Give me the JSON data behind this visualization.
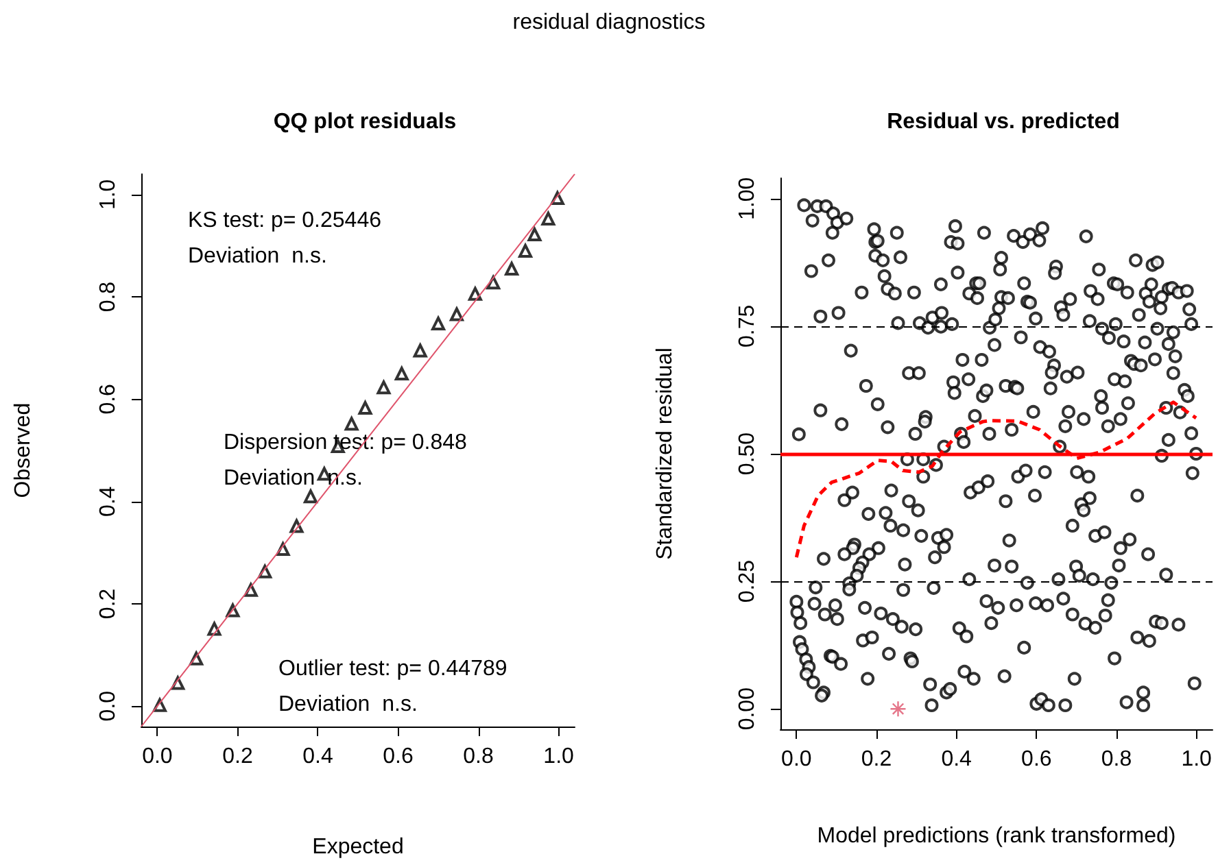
{
  "chart_data": [
    {
      "type": "other",
      "title": "residual diagnostics"
    },
    {
      "type": "scatter",
      "title": "QQ plot residuals",
      "xlabel": "Expected",
      "ylabel": "Observed",
      "xlim": [
        -0.04,
        1.04
      ],
      "ylim": [
        -0.04,
        1.04
      ],
      "xticks": [
        {
          "value": 0,
          "label": "0.0"
        },
        {
          "value": 0.2,
          "label": "0.2"
        },
        {
          "value": 0.4,
          "label": "0.4"
        },
        {
          "value": 0.6,
          "label": "0.6"
        },
        {
          "value": 0.8,
          "label": "0.8"
        },
        {
          "value": 1,
          "label": "1.0"
        }
      ],
      "yticks": [
        {
          "value": 0,
          "label": "0.0"
        },
        {
          "value": 0.2,
          "label": "0.2"
        },
        {
          "value": 0.4,
          "label": "0.4"
        },
        {
          "value": 0.6,
          "label": "0.6"
        },
        {
          "value": 0.8,
          "label": "0.8"
        },
        {
          "value": 1,
          "label": "1.0"
        }
      ],
      "annotations": [
        "KS test: p= 0.25446\nDeviation  n.s.",
        "Dispersion test: p= 0.848\nDeviation  n.s.",
        "Outlier test: p= 0.44789\nDeviation  n.s."
      ],
      "series": [
        {
          "type": "scatter",
          "color": "#000000",
          "marker": "triangle",
          "x": [
            0.006,
            0.051,
            0.097,
            0.142,
            0.188,
            0.233,
            0.268,
            0.313,
            0.347,
            0.382,
            0.416,
            0.45,
            0.484,
            0.518,
            0.564,
            0.609,
            0.655,
            0.7,
            0.746,
            0.792,
            0.837,
            0.883,
            0.917,
            0.94,
            0.974,
            0.997
          ],
          "values": [
            0.002,
            0.045,
            0.093,
            0.151,
            0.187,
            0.227,
            0.263,
            0.307,
            0.352,
            0.41,
            0.454,
            0.508,
            0.552,
            0.583,
            0.623,
            0.65,
            0.695,
            0.748,
            0.766,
            0.806,
            0.828,
            0.855,
            0.89,
            0.922,
            0.953,
            0.993
          ]
        },
        {
          "type": "line",
          "color": "#df536b",
          "marker": "none",
          "line_style": "solid",
          "x": [
            -0.04,
            1.04
          ],
          "values": [
            -0.04,
            1.04
          ]
        }
      ]
    },
    {
      "type": "scatter",
      "title": "Residual vs. predicted",
      "xlabel": "Model predictions (rank transformed)",
      "ylabel": "Standardized residual",
      "xlim": [
        -0.04,
        1.04
      ],
      "ylim": [
        -0.04,
        1.04
      ],
      "xticks": [
        {
          "value": 0,
          "label": "0.0"
        },
        {
          "value": 0.2,
          "label": "0.2"
        },
        {
          "value": 0.4,
          "label": "0.4"
        },
        {
          "value": 0.6,
          "label": "0.6"
        },
        {
          "value": 0.8,
          "label": "0.8"
        },
        {
          "value": 1,
          "label": "1.0"
        }
      ],
      "yticks": [
        {
          "value": 0,
          "label": "0.00"
        },
        {
          "value": 0.25,
          "label": "0.25"
        },
        {
          "value": 0.5,
          "label": "0.50"
        },
        {
          "value": 0.75,
          "label": "0.75"
        },
        {
          "value": 1,
          "label": "1.00"
        }
      ],
      "ref_lines": [
        {
          "axis": "y",
          "value": 0.5,
          "color": "#ff0000",
          "line_style": "solid"
        },
        {
          "axis": "y",
          "value": 0.25,
          "color": "#000000",
          "line_style": "dashed"
        },
        {
          "axis": "y",
          "value": 0.75,
          "color": "#000000",
          "line_style": "dashed"
        }
      ],
      "series": [
        {
          "type": "scatter",
          "color": "#000000",
          "marker": "circle",
          "x": [
            0.019,
            0.052,
            0.074,
            0.04,
            0.092,
            0.102,
            0.125,
            0.09,
            0.194,
            0.251,
            0.397,
            0.469,
            0.197,
            0.203,
            0.386,
            0.403,
            0.197,
            0.216,
            0.26,
            0.037,
            0.08,
            0.403,
            0.22,
            0.163,
            0.228,
            0.246,
            0.294,
            0.361,
            0.432,
            0.449,
            0.457,
            0.452,
            0.06,
            0.105,
            0.254,
            0.308,
            0.329,
            0.34,
            0.361,
            0.363,
            0.389,
            0.483,
            0.136,
            0.281,
            0.306,
            0.415,
            0.463,
            0.392,
            0.43,
            0.395,
            0.466,
            0.475,
            0.174,
            0.203,
            0.06,
            0.113,
            0.228,
            0.323,
            0.321,
            0.297,
            0.006,
            0.446,
            0.411,
            0.482,
            0.369,
            0.418,
            0.277,
            0.317,
            0.349,
            0.317,
            0.12,
            0.14,
            0.237,
            0.281,
            0.304,
            0.435,
            0.455,
            0.478,
            0.18,
            0.223,
            0.235,
            0.267,
            0.312,
            0.354,
            0.375,
            0.369,
            0.145,
            0.141,
            0.12,
            0.068,
            0.205,
            0.182,
            0.165,
            0.157,
            0.151,
            0.346,
            0.271,
            0.132,
            0.132,
            0.048,
            0.432,
            0.343,
            0.267,
            0.0,
            0.045,
            0.002,
            0.071,
            0.097,
            0.102,
            0.171,
            0.01,
            0.211,
            0.241,
            0.263,
            0.298,
            0.407,
            0.425,
            0.475,
            0.487,
            0.166,
            0.189,
            0.008,
            0.014,
            0.024,
            0.031,
            0.025,
            0.042,
            0.085,
            0.09,
            0.111,
            0.231,
            0.285,
            0.289,
            0.178,
            0.334,
            0.375,
            0.384,
            0.338,
            0.42,
            0.443,
            0.068,
            0.063,
            0.543,
            0.566,
            0.584,
            0.607,
            0.615,
            0.724,
            0.512,
            0.509,
            0.649,
            0.646,
            0.756,
            0.848,
            0.89,
            0.902,
            0.569,
            0.735,
            0.793,
            0.802,
            0.827,
            0.873,
            0.887,
            0.93,
            0.939,
            0.955,
            0.976,
            0.512,
            0.529,
            0.577,
            0.584,
            0.684,
            0.753,
            0.661,
            0.667,
            0.856,
            0.882,
            0.913,
            0.91,
            0.982,
            0.506,
            0.497,
            0.598,
            0.733,
            0.764,
            0.798,
            0.987,
            0.902,
            0.942,
            0.561,
            0.495,
            0.781,
            0.818,
            0.871,
            0.93,
            0.609,
            0.632,
            0.644,
            0.638,
            0.676,
            0.703,
            0.836,
            0.844,
            0.861,
            0.896,
            0.947,
            0.942,
            0.795,
            0.821,
            0.523,
            0.546,
            0.552,
            0.635,
            0.761,
            0.764,
            0.829,
            0.97,
            0.978,
            0.592,
            0.68,
            0.718,
            0.672,
            0.779,
            0.81,
            0.924,
            0.959,
            0.538,
            0.987,
            0.93,
            0.658,
            0.913,
            0.999,
            0.554,
            0.573,
            0.621,
            0.701,
            0.73,
            0.99,
            0.523,
            0.596,
            0.733,
            0.712,
            0.718,
            0.852,
            0.69,
            0.747,
            0.77,
            0.81,
            0.833,
            0.879,
            0.532,
            0.495,
            0.538,
            0.699,
            0.707,
            0.741,
            0.787,
            0.655,
            0.577,
            0.806,
            0.924,
            0.504,
            0.55,
            0.598,
            0.627,
            0.667,
            0.69,
            0.722,
            0.747,
            0.779,
            0.772,
            0.898,
            0.913,
            0.955,
            0.852,
            0.882,
            0.569,
            0.795,
            0.52,
            0.695,
            0.995,
            0.6,
            0.612,
            0.63,
            0.672,
            0.825,
            0.867,
            0.867
          ],
          "values": [
            0.987,
            0.985,
            0.985,
            0.957,
            0.971,
            0.953,
            0.961,
            0.933,
            0.94,
            0.933,
            0.946,
            0.933,
            0.915,
            0.917,
            0.915,
            0.912,
            0.888,
            0.879,
            0.885,
            0.858,
            0.879,
            0.855,
            0.848,
            0.816,
            0.823,
            0.814,
            0.816,
            0.832,
            0.814,
            0.834,
            0.834,
            0.805,
            0.769,
            0.776,
            0.756,
            0.756,
            0.747,
            0.767,
            0.749,
            0.776,
            0.754,
            0.747,
            0.702,
            0.658,
            0.658,
            0.684,
            0.684,
            0.64,
            0.646,
            0.619,
            0.613,
            0.624,
            0.633,
            0.597,
            0.585,
            0.558,
            0.552,
            0.572,
            0.563,
            0.539,
            0.538,
            0.574,
            0.539,
            0.539,
            0.514,
            0.523,
            0.489,
            0.489,
            0.478,
            0.455,
            0.409,
            0.424,
            0.428,
            0.407,
            0.389,
            0.424,
            0.434,
            0.446,
            0.382,
            0.384,
            0.359,
            0.35,
            0.339,
            0.335,
            0.341,
            0.317,
            0.322,
            0.315,
            0.303,
            0.294,
            0.315,
            0.303,
            0.287,
            0.276,
            0.261,
            0.297,
            0.283,
            0.246,
            0.234,
            0.238,
            0.254,
            0.237,
            0.233,
            0.21,
            0.206,
            0.189,
            0.185,
            0.203,
            0.176,
            0.198,
            0.168,
            0.187,
            0.176,
            0.161,
            0.156,
            0.158,
            0.142,
            0.211,
            0.168,
            0.134,
            0.14,
            0.131,
            0.117,
            0.097,
            0.082,
            0.068,
            0.052,
            0.104,
            0.102,
            0.088,
            0.108,
            0.099,
            0.093,
            0.059,
            0.048,
            0.032,
            0.039,
            0.007,
            0.073,
            0.059,
            0.032,
            0.026,
            0.927,
            0.915,
            0.93,
            0.918,
            0.942,
            0.926,
            0.884,
            0.861,
            0.867,
            0.854,
            0.861,
            0.879,
            0.87,
            0.875,
            0.834,
            0.819,
            0.834,
            0.832,
            0.816,
            0.814,
            0.832,
            0.823,
            0.825,
            0.816,
            0.819,
            0.807,
            0.805,
            0.798,
            0.796,
            0.803,
            0.803,
            0.787,
            0.772,
            0.772,
            0.798,
            0.807,
            0.785,
            0.783,
            0.785,
            0.763,
            0.765,
            0.76,
            0.745,
            0.754,
            0.754,
            0.745,
            0.738,
            0.728,
            0.713,
            0.727,
            0.72,
            0.718,
            0.715,
            0.709,
            0.7,
            0.673,
            0.659,
            0.651,
            0.659,
            0.682,
            0.676,
            0.673,
            0.685,
            0.691,
            0.658,
            0.646,
            0.642,
            0.633,
            0.631,
            0.628,
            0.628,
            0.613,
            0.59,
            0.599,
            0.625,
            0.613,
            0.582,
            0.582,
            0.568,
            0.554,
            0.554,
            0.568,
            0.59,
            0.581,
            0.547,
            0.54,
            0.527,
            0.514,
            0.496,
            0.5,
            0.455,
            0.467,
            0.464,
            0.464,
            0.455,
            0.462,
            0.407,
            0.418,
            0.413,
            0.401,
            0.389,
            0.418,
            0.359,
            0.339,
            0.346,
            0.315,
            0.332,
            0.303,
            0.33,
            0.281,
            0.279,
            0.279,
            0.261,
            0.254,
            0.247,
            0.254,
            0.247,
            0.281,
            0.263,
            0.198,
            0.203,
            0.207,
            0.203,
            0.216,
            0.185,
            0.167,
            0.159,
            0.213,
            0.183,
            0.171,
            0.168,
            0.165,
            0.14,
            0.133,
            0.12,
            0.099,
            0.064,
            0.059,
            0.05,
            0.01,
            0.019,
            0.007,
            0.007,
            0.013,
            0.032,
            0.007
          ]
        },
        {
          "type": "scatter",
          "color": "#df536b",
          "marker": "cross",
          "x": [
            0.254
          ],
          "values": [
            0.0
          ]
        },
        {
          "type": "line",
          "color": "#ff0000",
          "marker": "none",
          "line_style": "dashed",
          "x": [
            0.0,
            0.019,
            0.054,
            0.088,
            0.157,
            0.203,
            0.237,
            0.266,
            0.306,
            0.34,
            0.363,
            0.409,
            0.466,
            0.483,
            0.553,
            0.608,
            0.656,
            0.701,
            0.758,
            0.827,
            0.896,
            0.942,
            0.999
          ],
          "values": [
            0.297,
            0.359,
            0.418,
            0.444,
            0.462,
            0.487,
            0.485,
            0.467,
            0.464,
            0.476,
            0.503,
            0.543,
            0.563,
            0.565,
            0.564,
            0.547,
            0.516,
            0.491,
            0.503,
            0.53,
            0.579,
            0.601,
            0.57
          ]
        }
      ]
    }
  ]
}
